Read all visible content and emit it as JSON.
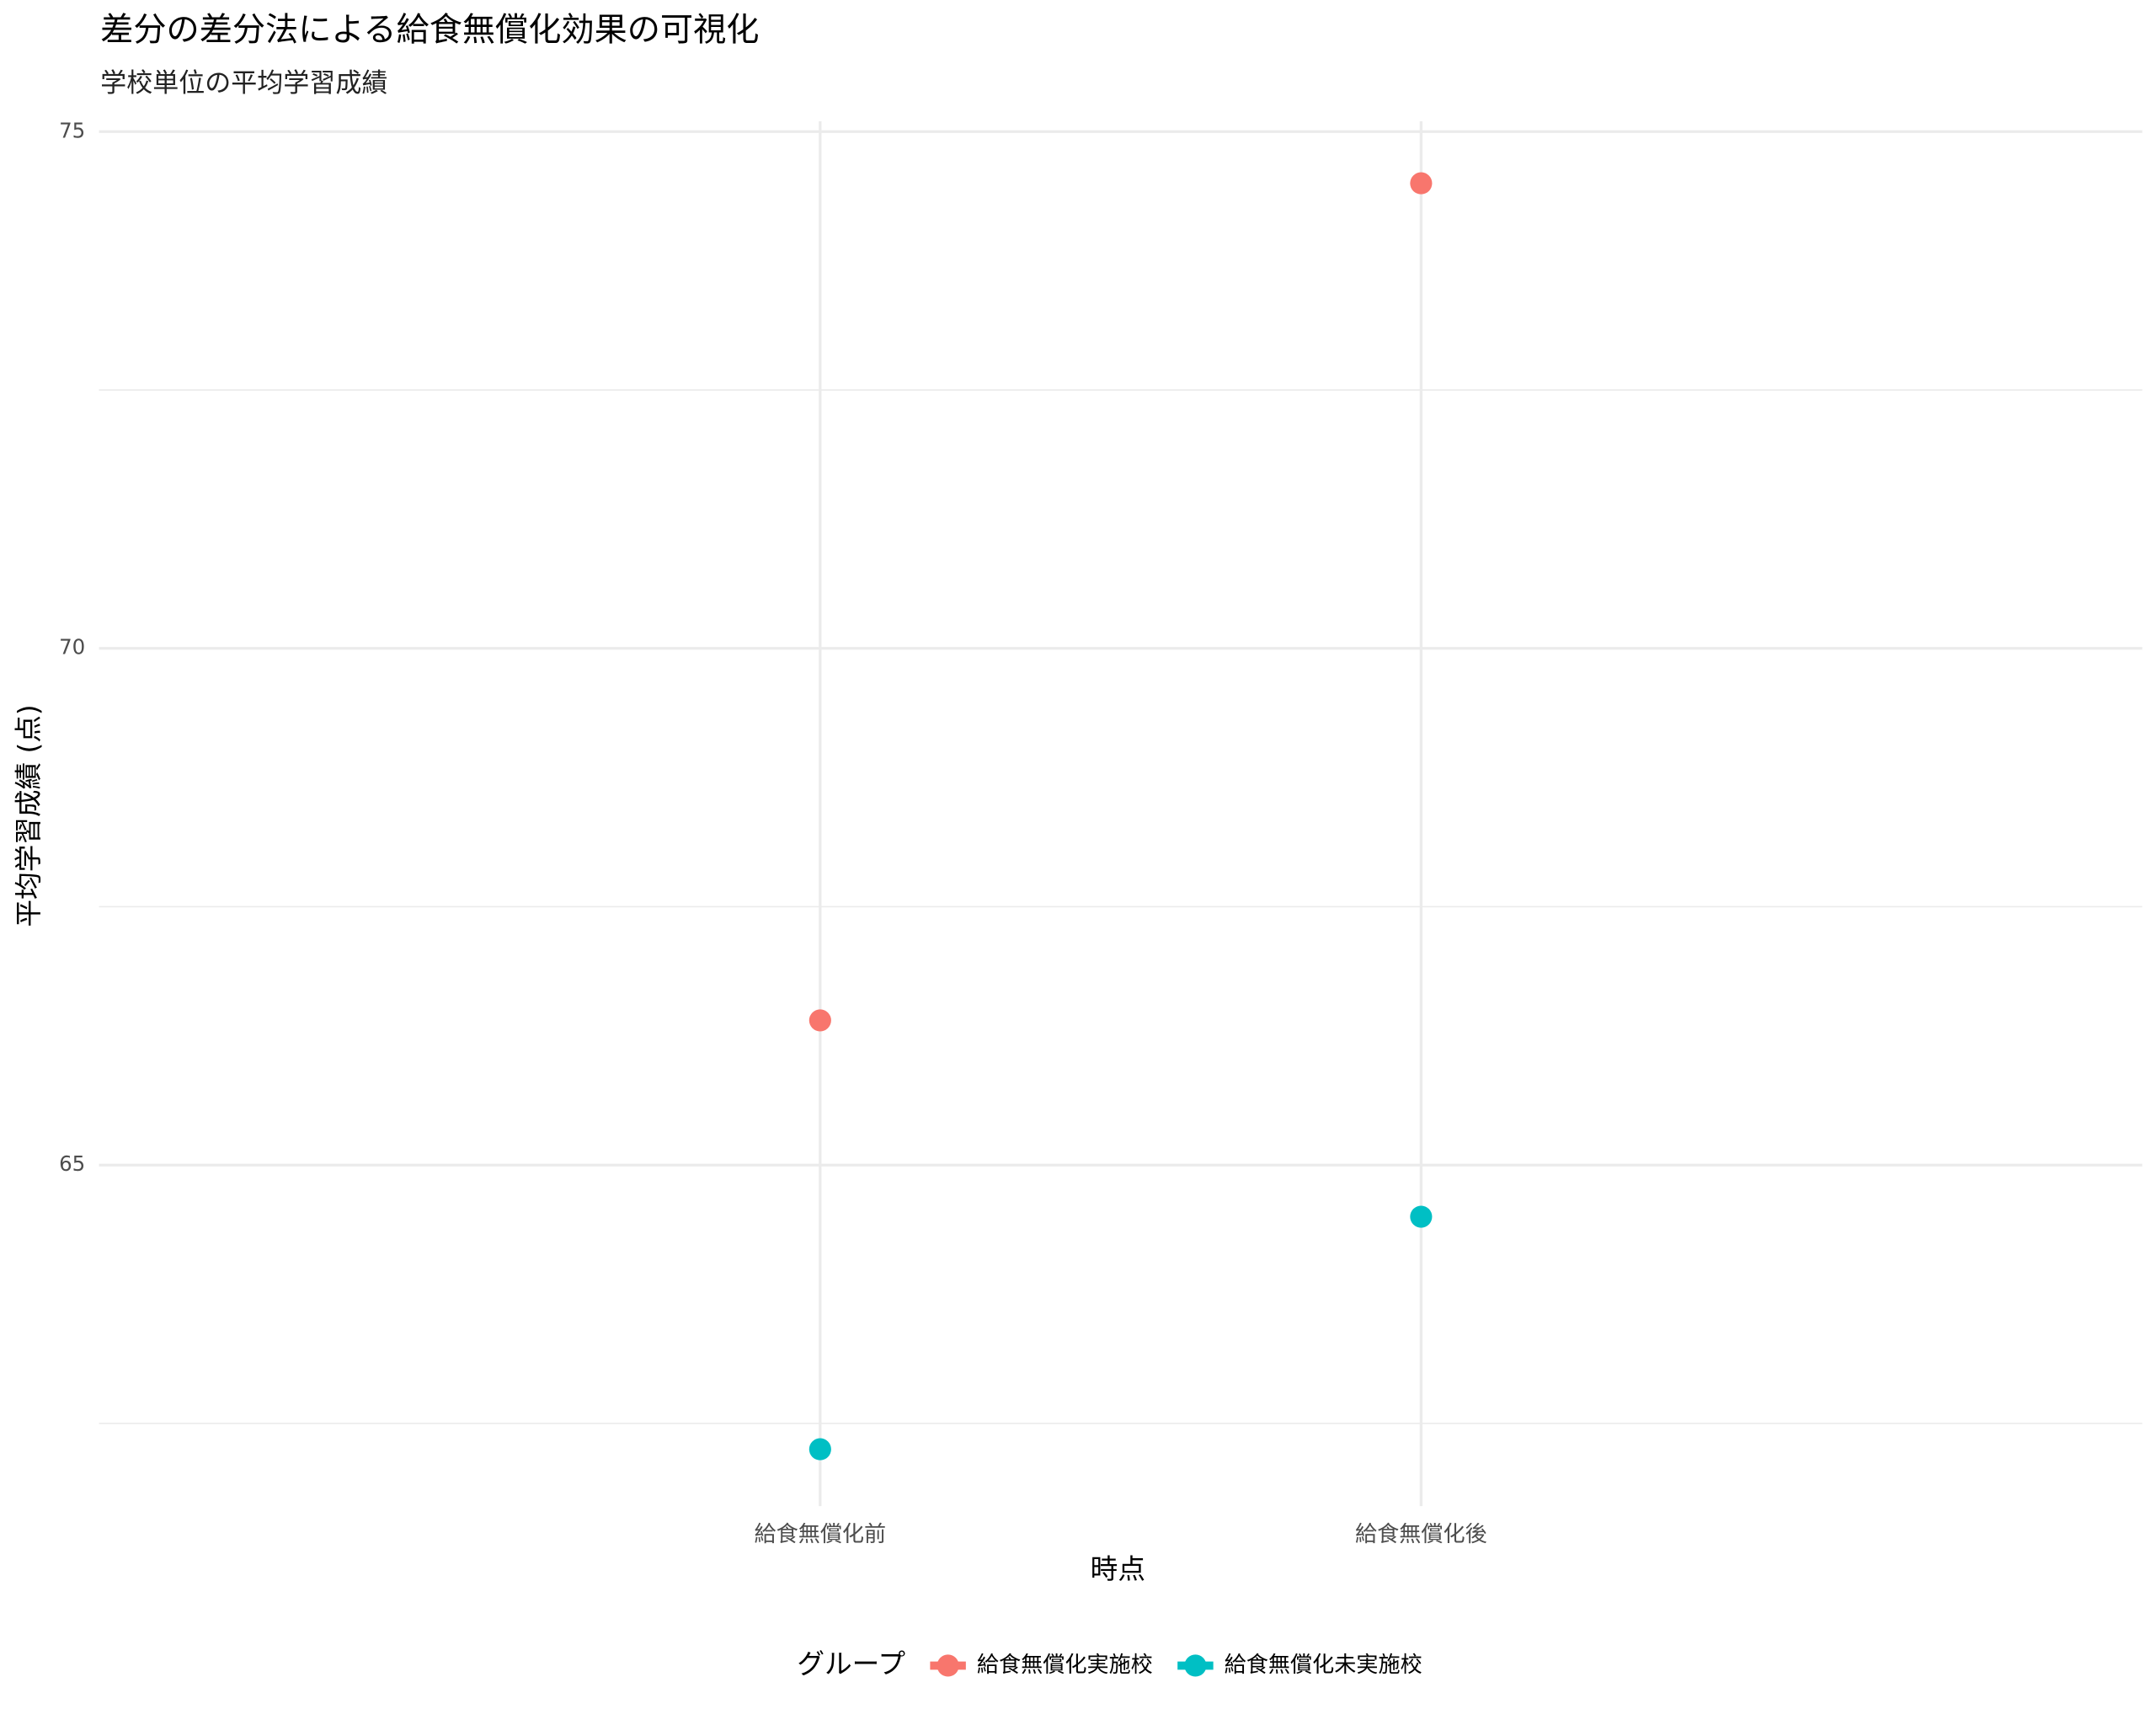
{
  "chart_data": {
    "type": "line",
    "title": "差分の差分法による給食無償化効果の可視化",
    "subtitle": "学校単位の平均学習成績",
    "x_label": "時点",
    "y_label": "平均学習成績 (点)",
    "categories": [
      "給食無償化前",
      "給食無償化後"
    ],
    "series": [
      {
        "name": "給食無償化実施校",
        "color": "#f8766d",
        "values": [
          66.4,
          74.5
        ]
      },
      {
        "name": "給食無償化未実施校",
        "color": "#00bfc4",
        "values": [
          62.25,
          64.5
        ]
      }
    ],
    "ylim": [
      61.7,
      75.1
    ],
    "yticks": [
      65,
      70,
      75
    ],
    "grid": true,
    "legend_title": "グループ",
    "legend_position": "bottom"
  }
}
